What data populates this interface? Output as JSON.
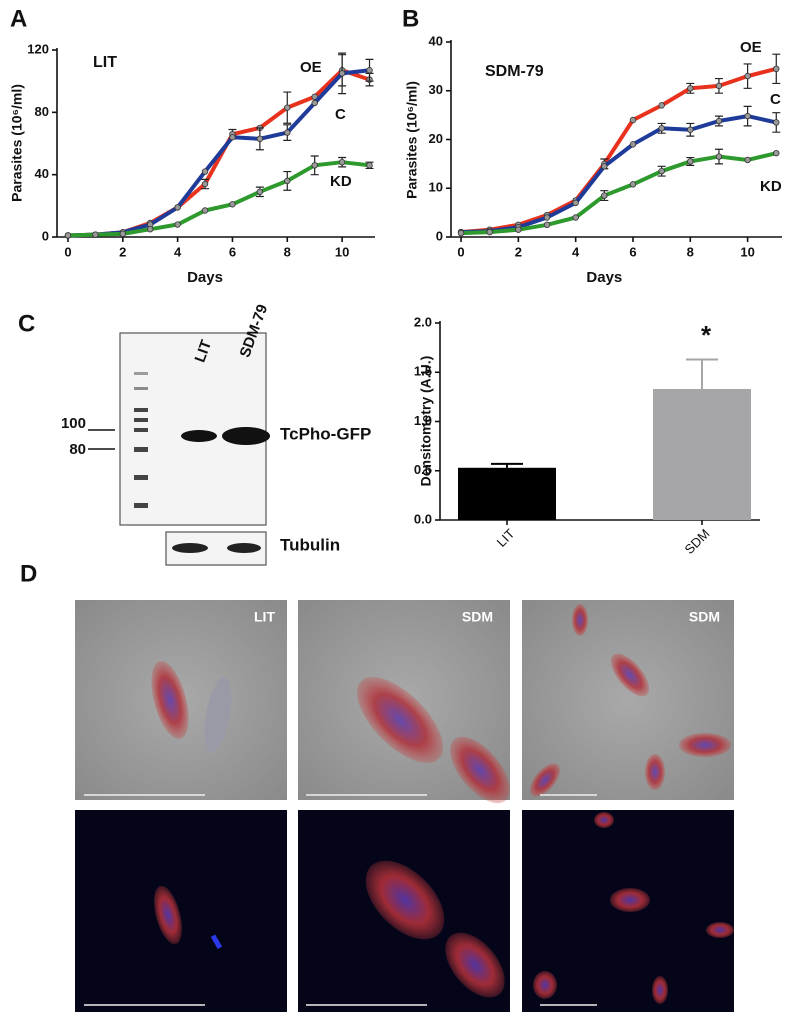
{
  "panel_labels": [
    "A",
    "B",
    "C",
    "D"
  ],
  "chart_data": [
    {
      "type": "line",
      "annotation": "LIT",
      "x_label": "Days",
      "y_label": "Parasites (10⁶/ml)",
      "x": [
        0,
        1,
        2,
        3,
        4,
        5,
        6,
        7,
        8,
        9,
        10,
        11
      ],
      "xlim": [
        -0.4,
        11.2
      ],
      "xticks": [
        0,
        2,
        4,
        6,
        8,
        10
      ],
      "ylim": [
        0,
        120
      ],
      "yticks": [
        0,
        40,
        80,
        120
      ],
      "series": [
        {
          "name": "OE",
          "color": "#e8321e",
          "values": [
            1,
            1.5,
            3,
            9,
            19,
            34,
            66,
            70,
            83,
            90,
            107,
            101
          ],
          "errors": [
            null,
            null,
            null,
            null,
            null,
            3,
            3,
            null,
            10,
            null,
            10,
            4
          ]
        },
        {
          "name": "C",
          "color": "#1f3b9a",
          "values": [
            1,
            1.5,
            3,
            8,
            19,
            42,
            64,
            63,
            67,
            86,
            105,
            107
          ],
          "errors": [
            null,
            null,
            null,
            null,
            null,
            null,
            null,
            7,
            5,
            null,
            13,
            7
          ]
        },
        {
          "name": "KD",
          "color": "#2e9a2e",
          "values": [
            1,
            1.5,
            2,
            5,
            8,
            17,
            21,
            29,
            36,
            46,
            48,
            46
          ],
          "errors": [
            null,
            null,
            null,
            null,
            null,
            null,
            null,
            3,
            6,
            6,
            3,
            2
          ]
        }
      ]
    },
    {
      "type": "line",
      "annotation": "SDM-79",
      "x_label": "Days",
      "y_label": "Parasites (10⁶/ml)",
      "x": [
        0,
        1,
        2,
        3,
        4,
        5,
        6,
        7,
        8,
        9,
        10,
        11
      ],
      "xlim": [
        -0.35,
        11.2
      ],
      "xticks": [
        0,
        2,
        4,
        6,
        8,
        10
      ],
      "ylim": [
        0,
        40
      ],
      "yticks": [
        0,
        10,
        20,
        30,
        40
      ],
      "series": [
        {
          "name": "OE",
          "color": "#e8321e",
          "values": [
            1,
            1.5,
            2.5,
            4.5,
            7.5,
            15,
            24,
            27,
            30.5,
            31,
            33,
            34.5
          ],
          "errors": [
            null,
            null,
            null,
            null,
            null,
            1,
            null,
            null,
            1,
            1.5,
            2.5,
            3
          ]
        },
        {
          "name": "C",
          "color": "#1f3b9a",
          "values": [
            1,
            1.2,
            2,
            4,
            7,
            14.5,
            19,
            22.3,
            22,
            23.8,
            24.8,
            23.5
          ],
          "errors": [
            null,
            null,
            null,
            null,
            null,
            null,
            null,
            1,
            1.3,
            1,
            2,
            2
          ]
        },
        {
          "name": "KD",
          "color": "#2e9a2e",
          "values": [
            0.8,
            1,
            1.5,
            2.5,
            4,
            8.5,
            10.8,
            13.5,
            15.5,
            16.5,
            15.8,
            17.2
          ],
          "errors": [
            null,
            null,
            null,
            null,
            null,
            1,
            null,
            1,
            0.8,
            1.5,
            null,
            null
          ]
        }
      ]
    },
    {
      "type": "bar",
      "annotation": "*",
      "y_label": "Densitometry (A.U.)",
      "categories": [
        "LIT",
        "SDM"
      ],
      "values": [
        0.53,
        1.33
      ],
      "errors": [
        0.04,
        0.3
      ],
      "colors": [
        "#000000",
        "#a6a6a9"
      ],
      "ylim": [
        0,
        2.0
      ],
      "yticks": [
        {
          "value": 0,
          "label": "0.0"
        },
        0.5,
        {
          "value": 1,
          "label": "1.0"
        },
        1.5,
        {
          "value": 2,
          "label": "2.0"
        }
      ]
    }
  ],
  "blot": {
    "lanes": [
      "LIT",
      "SDM-79"
    ],
    "markers": [
      "100",
      "80"
    ],
    "band_label": "TcPho-GFP",
    "loading_label": "Tubulin"
  },
  "micrographs": {
    "labels": [
      "LIT",
      "SDM",
      "SDM"
    ]
  }
}
